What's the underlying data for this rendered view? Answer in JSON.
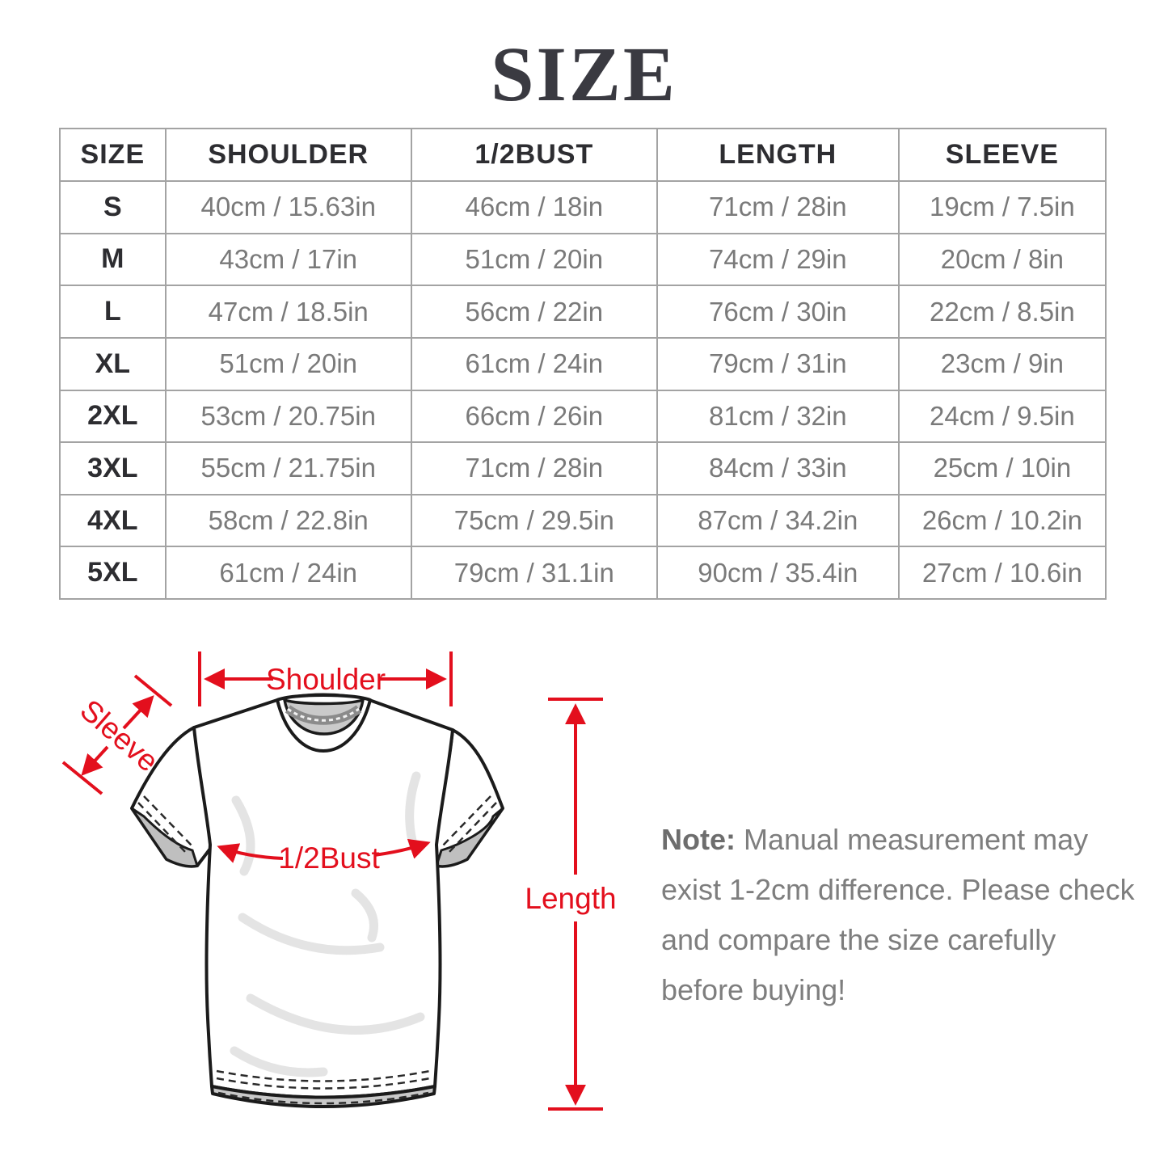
{
  "page_title": "SIZE",
  "table": {
    "headers": [
      "SIZE",
      "SHOULDER",
      "1/2BUST",
      "LENGTH",
      "SLEEVE"
    ],
    "rows": [
      {
        "size": "S",
        "shoulder": "40cm / 15.63in",
        "bust": "46cm / 18in",
        "length": "71cm / 28in",
        "sleeve": "19cm / 7.5in"
      },
      {
        "size": "M",
        "shoulder": "43cm / 17in",
        "bust": "51cm / 20in",
        "length": "74cm / 29in",
        "sleeve": "20cm / 8in"
      },
      {
        "size": "L",
        "shoulder": "47cm / 18.5in",
        "bust": "56cm / 22in",
        "length": "76cm / 30in",
        "sleeve": "22cm / 8.5in"
      },
      {
        "size": "XL",
        "shoulder": "51cm / 20in",
        "bust": "61cm / 24in",
        "length": "79cm / 31in",
        "sleeve": "23cm / 9in"
      },
      {
        "size": "2XL",
        "shoulder": "53cm / 20.75in",
        "bust": "66cm / 26in",
        "length": "81cm / 32in",
        "sleeve": "24cm / 9.5in"
      },
      {
        "size": "3XL",
        "shoulder": "55cm / 21.75in",
        "bust": "71cm / 28in",
        "length": "84cm / 33in",
        "sleeve": "25cm / 10in"
      },
      {
        "size": "4XL",
        "shoulder": "58cm / 22.8in",
        "bust": "75cm / 29.5in",
        "length": "87cm / 34.2in",
        "sleeve": "26cm / 10.2in"
      },
      {
        "size": "5XL",
        "shoulder": "61cm / 24in",
        "bust": "79cm / 31.1in",
        "length": "90cm / 35.4in",
        "sleeve": "27cm / 10.6in"
      }
    ]
  },
  "diagram": {
    "annotation_color": "#e30f1d",
    "labels": {
      "shoulder": "Shoulder",
      "sleeve": "Sleeve",
      "bust": "1/2Bust",
      "length": "Length"
    }
  },
  "note": {
    "prefix": "Note:",
    "body": " Manual measurement may exist 1-2cm difference. Please check and compare the size carefully before buying!"
  }
}
